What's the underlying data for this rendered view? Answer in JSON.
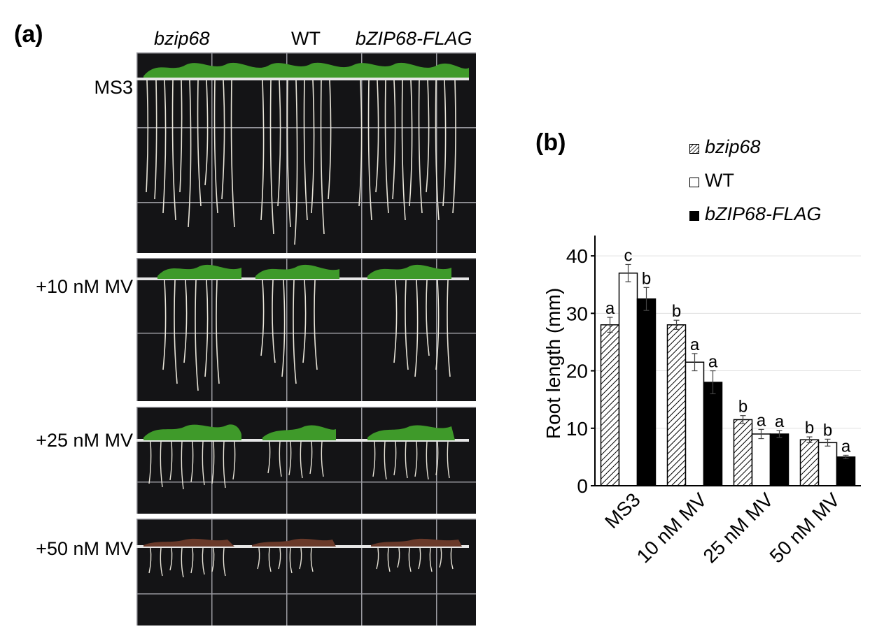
{
  "panel_a": {
    "label": "(a)",
    "columns": [
      "bzip68",
      "WT",
      "bZIP68-FLAG"
    ],
    "rows": [
      "MS3",
      "+10 nM MV",
      "+25 nM MV",
      "+50 nM MV"
    ]
  },
  "panel_b": {
    "label": "(b)",
    "legend": [
      "bzip68",
      "WT",
      "bZIP68-FLAG"
    ]
  },
  "chart_data": {
    "type": "bar",
    "categories": [
      "MS3",
      "10 nM MV",
      "25 nM MV",
      "50 nM MV"
    ],
    "ylabel": "Root length (mm)",
    "ylim": [
      0,
      45
    ],
    "yticks": [
      0,
      10,
      20,
      30,
      40
    ],
    "grid": true,
    "legend_position": "top",
    "series": [
      {
        "name": "bzip68",
        "fill": "hatched",
        "values": [
          28,
          28,
          11.5,
          8
        ],
        "errors": [
          1.3,
          0.8,
          0.7,
          0.5
        ],
        "letters": [
          "a",
          "b",
          "b",
          "b"
        ]
      },
      {
        "name": "WT",
        "fill": "#ffffff",
        "values": [
          37,
          21.5,
          9,
          7.5
        ],
        "errors": [
          1.5,
          1.5,
          0.8,
          0.6
        ],
        "letters": [
          "c",
          "a",
          "a",
          "b"
        ]
      },
      {
        "name": "bZIP68-FLAG",
        "fill": "#000000",
        "values": [
          32.5,
          18,
          9,
          5
        ],
        "errors": [
          2.0,
          2.0,
          0.6,
          0.3
        ],
        "letters": [
          "b",
          "a",
          "a",
          "a"
        ]
      }
    ]
  }
}
